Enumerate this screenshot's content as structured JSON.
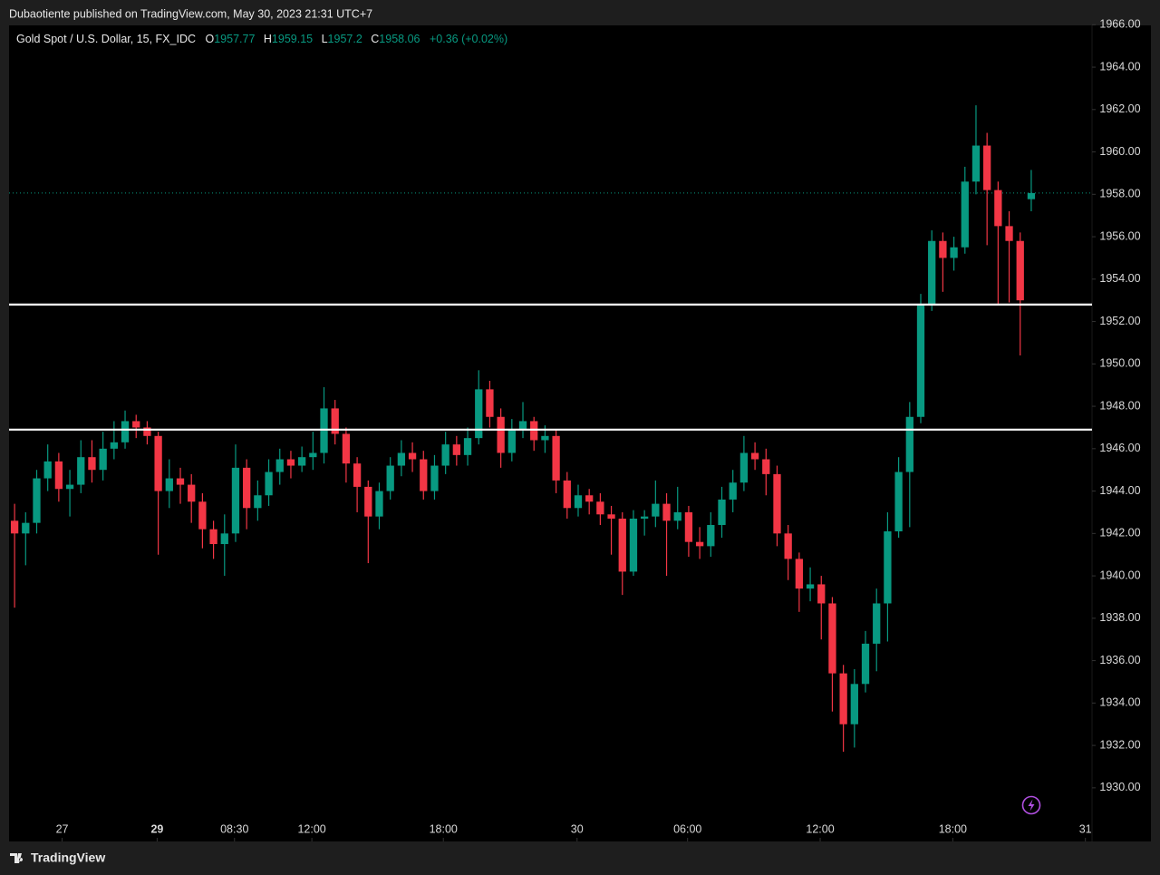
{
  "header": {
    "text": "Dubaotiente published on TradingView.com, May 30, 2023 21:31 UTC+7"
  },
  "footer": {
    "brand": "TradingView"
  },
  "chart_data": {
    "type": "candlestick",
    "title": "Gold Spot / U.S. Dollar, 15, FX_IDC",
    "ohlc_labels": [
      "O",
      "H",
      "L",
      "C"
    ],
    "change": "+0.36 (+0.02%)",
    "up_color": "#089981",
    "down_color": "#f23645",
    "x": [
      0,
      1,
      2,
      3,
      4,
      5,
      6,
      7,
      8,
      9,
      10,
      11,
      12,
      13,
      14,
      15,
      16,
      17,
      18,
      19,
      20,
      21,
      22,
      23,
      24,
      25,
      26,
      27,
      28,
      29,
      30,
      31,
      32,
      33,
      34,
      35,
      36,
      37,
      38,
      39,
      40,
      41,
      42,
      43,
      44,
      45,
      46,
      47,
      48,
      49,
      50,
      51,
      52,
      53,
      54,
      55,
      56,
      57,
      58,
      59,
      60,
      61,
      62,
      63,
      64,
      65,
      66,
      67,
      68,
      69,
      70,
      71,
      72,
      73,
      74,
      75,
      76,
      77,
      78,
      79,
      80,
      81,
      82,
      83,
      84,
      85,
      86,
      87,
      88,
      89,
      90,
      91,
      92
    ],
    "open": [
      1942.6,
      1942.0,
      1942.5,
      1944.6,
      1945.4,
      1944.1,
      1944.3,
      1945.6,
      1945.0,
      1946.0,
      1946.3,
      1947.3,
      1947.0,
      1946.6,
      1944.0,
      1944.6,
      1944.3,
      1943.5,
      1942.2,
      1941.5,
      1942.0,
      1945.1,
      1943.2,
      1943.8,
      1944.9,
      1945.5,
      1945.2,
      1945.6,
      1945.8,
      1947.9,
      1946.7,
      1945.3,
      1944.2,
      1942.8,
      1944.0,
      1945.2,
      1945.8,
      1945.5,
      1944.0,
      1945.2,
      1946.2,
      1945.7,
      1946.5,
      1948.8,
      1947.5,
      1945.8,
      1946.9,
      1947.3,
      1946.4,
      1946.6,
      1944.5,
      1943.2,
      1943.8,
      1943.5,
      1942.9,
      1942.7,
      1940.2,
      1942.7,
      1942.8,
      1943.4,
      1942.6,
      1943.0,
      1941.6,
      1941.4,
      1942.4,
      1943.6,
      1944.4,
      1945.8,
      1945.5,
      1944.8,
      1942.0,
      1940.8,
      1939.4,
      1939.6,
      1938.7,
      1935.4,
      1933.0,
      1934.9,
      1936.8,
      1938.7,
      1942.1,
      1944.9,
      1947.5,
      1952.8,
      1955.8,
      1955.0,
      1955.5,
      1958.6,
      1960.3,
      1958.2,
      1956.5,
      1955.8,
      1957.77
    ],
    "high": [
      1943.4,
      1943.0,
      1945.0,
      1946.2,
      1945.8,
      1945.0,
      1946.4,
      1946.4,
      1946.8,
      1947.3,
      1947.8,
      1947.6,
      1947.3,
      1946.8,
      1945.5,
      1945.1,
      1944.8,
      1943.9,
      1942.6,
      1942.9,
      1946.2,
      1945.5,
      1944.5,
      1945.5,
      1946.0,
      1945.9,
      1946.1,
      1946.8,
      1948.9,
      1948.3,
      1947.0,
      1945.6,
      1944.5,
      1944.4,
      1945.6,
      1946.4,
      1946.3,
      1945.9,
      1945.7,
      1946.8,
      1946.6,
      1947.0,
      1949.7,
      1949.2,
      1947.9,
      1947.4,
      1948.2,
      1947.5,
      1947.1,
      1946.9,
      1944.9,
      1944.3,
      1944.1,
      1943.9,
      1943.3,
      1943.0,
      1943.1,
      1943.1,
      1944.5,
      1943.9,
      1944.2,
      1943.3,
      1942.3,
      1943.0,
      1944.2,
      1945.0,
      1946.6,
      1946.3,
      1946.0,
      1945.2,
      1942.4,
      1941.1,
      1940.4,
      1940.0,
      1939.0,
      1935.8,
      1935.6,
      1937.4,
      1939.4,
      1943.0,
      1945.6,
      1948.2,
      1953.3,
      1956.3,
      1956.2,
      1956.0,
      1959.3,
      1962.2,
      1960.9,
      1958.6,
      1957.2,
      1956.2,
      1959.15
    ],
    "low": [
      1938.5,
      1940.5,
      1942.0,
      1944.0,
      1943.5,
      1942.8,
      1943.9,
      1944.4,
      1944.5,
      1945.5,
      1946.0,
      1946.5,
      1946.2,
      1941.0,
      1943.2,
      1943.4,
      1942.5,
      1941.3,
      1940.8,
      1940.0,
      1941.6,
      1942.2,
      1942.6,
      1943.3,
      1944.3,
      1944.6,
      1944.9,
      1945.0,
      1945.3,
      1946.2,
      1944.4,
      1943.0,
      1940.6,
      1942.2,
      1943.6,
      1944.7,
      1944.9,
      1943.6,
      1943.6,
      1944.8,
      1945.2,
      1945.2,
      1946.2,
      1947.0,
      1945.1,
      1945.4,
      1946.5,
      1945.9,
      1945.8,
      1943.9,
      1942.7,
      1942.8,
      1942.9,
      1942.4,
      1941.0,
      1939.1,
      1940.0,
      1941.9,
      1942.3,
      1940.0,
      1942.2,
      1940.9,
      1940.8,
      1940.9,
      1941.8,
      1943.0,
      1944.0,
      1945.0,
      1943.8,
      1941.4,
      1939.8,
      1938.3,
      1938.8,
      1937.0,
      1933.6,
      1931.7,
      1931.9,
      1934.5,
      1935.5,
      1936.9,
      1941.8,
      1942.3,
      1947.2,
      1952.5,
      1953.4,
      1954.4,
      1955.2,
      1958.0,
      1955.6,
      1952.8,
      1952.9,
      1950.4,
      1957.2
    ],
    "close": [
      1942.0,
      1942.5,
      1944.6,
      1945.4,
      1944.1,
      1944.3,
      1945.6,
      1945.0,
      1946.0,
      1946.3,
      1947.3,
      1947.0,
      1946.6,
      1944.0,
      1944.6,
      1944.3,
      1943.5,
      1942.2,
      1941.5,
      1942.0,
      1945.1,
      1943.2,
      1943.8,
      1944.9,
      1945.5,
      1945.2,
      1945.6,
      1945.8,
      1947.9,
      1946.7,
      1945.3,
      1944.2,
      1942.8,
      1944.0,
      1945.2,
      1945.8,
      1945.5,
      1944.0,
      1945.2,
      1946.2,
      1945.7,
      1946.5,
      1948.8,
      1947.5,
      1945.8,
      1946.9,
      1947.3,
      1946.4,
      1946.6,
      1944.5,
      1943.2,
      1943.8,
      1943.5,
      1942.9,
      1942.7,
      1940.2,
      1942.7,
      1942.8,
      1943.4,
      1942.6,
      1943.0,
      1941.6,
      1941.4,
      1942.4,
      1943.6,
      1944.4,
      1945.8,
      1945.5,
      1944.8,
      1942.0,
      1940.8,
      1939.4,
      1939.6,
      1938.7,
      1935.4,
      1933.0,
      1934.9,
      1936.8,
      1938.7,
      1942.1,
      1944.9,
      1947.5,
      1952.8,
      1955.8,
      1955.0,
      1955.5,
      1958.6,
      1960.3,
      1958.2,
      1956.5,
      1955.8,
      1953.0,
      1958.06
    ],
    "horizontal_lines": [
      1952.8,
      1946.9
    ],
    "xlim": [
      -0.5,
      97.5
    ],
    "xticks": [
      {
        "value": 4.3,
        "label": "27"
      },
      {
        "value": 12.9,
        "label": "29"
      },
      {
        "value": 19.9,
        "label": "08:30"
      },
      {
        "value": 26.9,
        "label": "12:00"
      },
      {
        "value": 38.8,
        "label": "18:00"
      },
      {
        "value": 50.9,
        "label": "30"
      },
      {
        "value": 60.9,
        "label": "06:00"
      },
      {
        "value": 72.9,
        "label": "12:00"
      },
      {
        "value": 84.9,
        "label": "18:00"
      },
      {
        "value": 96.9,
        "label": "31"
      }
    ],
    "ylim": [
      1927.47,
      1965.97
    ],
    "yticks": [
      {
        "value": 1930,
        "label": "1930.00"
      },
      {
        "value": 1932,
        "label": "1932.00"
      },
      {
        "value": 1934,
        "label": "1934.00"
      },
      {
        "value": 1936,
        "label": "1936.00"
      },
      {
        "value": 1938,
        "label": "1938.00"
      },
      {
        "value": 1940,
        "label": "1940.00"
      },
      {
        "value": 1942,
        "label": "1942.00"
      },
      {
        "value": 1944,
        "label": "1944.00"
      },
      {
        "value": 1946,
        "label": "1946.00"
      },
      {
        "value": 1948,
        "label": "1948.00"
      },
      {
        "value": 1950,
        "label": "1950.00"
      },
      {
        "value": 1952,
        "label": "1952.00"
      },
      {
        "value": 1954,
        "label": "1954.00"
      },
      {
        "value": 1956,
        "label": "1956.00"
      },
      {
        "value": 1958,
        "label": "1958.00"
      },
      {
        "value": 1960,
        "label": "1960.00"
      },
      {
        "value": 1962,
        "label": "1962.00"
      },
      {
        "value": 1964,
        "label": "1964.00"
      },
      {
        "value": 1966,
        "label": "1966.00"
      }
    ]
  }
}
